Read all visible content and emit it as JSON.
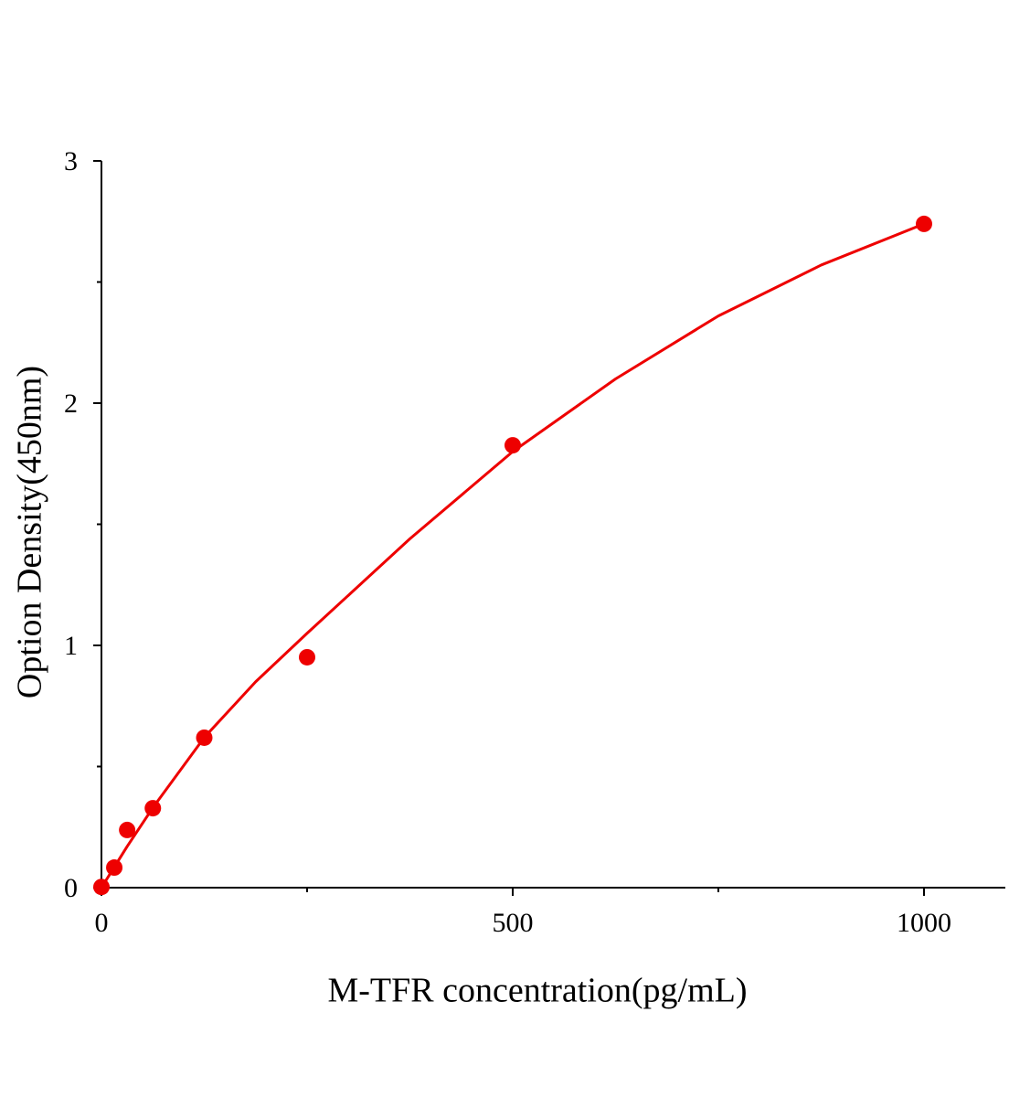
{
  "chart_data": {
    "type": "scatter",
    "x_label": "M-TFR concentration(pg/mL)",
    "y_label": "Option Density(450nm)",
    "series": [
      {
        "style": "markers",
        "color": "#ee0000",
        "x": [
          0,
          15.6,
          31.25,
          62.5,
          125,
          250,
          500,
          1000
        ],
        "values": [
          0.003,
          0.083,
          0.238,
          0.328,
          0.619,
          0.951,
          1.826,
          2.74
        ]
      },
      {
        "style": "line",
        "color": "#ee0000",
        "x": [
          0,
          31.25,
          62.5,
          125,
          187.5,
          250,
          375,
          500,
          625,
          750,
          875,
          1000
        ],
        "values": [
          0,
          0.17,
          0.33,
          0.62,
          0.85,
          1.05,
          1.44,
          1.8,
          2.1,
          2.36,
          2.57,
          2.74
        ]
      }
    ],
    "xlim": [
      0,
      1100
    ],
    "xticks": [
      0,
      500,
      1000
    ],
    "xminorticks": [
      250,
      750
    ],
    "ylim": [
      0,
      3
    ],
    "yticks": [
      0,
      1,
      2,
      3
    ],
    "yminorticks": [
      0.5,
      1.5,
      2.5
    ]
  }
}
